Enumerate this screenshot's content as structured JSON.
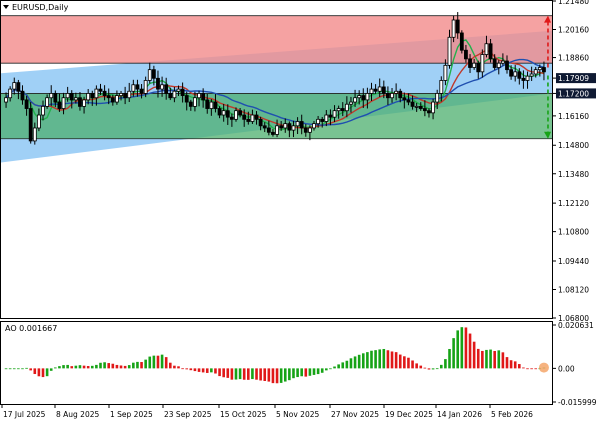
{
  "window_title": "EURUSD,Daily",
  "subwindow_title": "AO 0.001667",
  "colors": {
    "bull_candle": "#000000",
    "bear_candle": "#000000",
    "red_zone": "#f28b8b",
    "blue_channel": "#8fc8f5",
    "green_zone": "#4caf6e",
    "ma_fast": "#22b14c",
    "ma_mid": "#c0392b",
    "ma_slow": "#1f4fb0",
    "ao_up": "#16a316",
    "ao_down": "#e01818",
    "box_tag_fill": "#0f1a33",
    "box_tag_text": "#ffffff"
  },
  "chart_data": [
    {
      "type": "candlestick",
      "title": "EURUSD,Daily",
      "ylim": [
        1.068,
        1.2148
      ],
      "y_ticks": [
        "1.21480",
        "1.20160",
        "1.18860",
        "1.17909",
        "1.17200",
        "1.16160",
        "1.14800",
        "1.13480",
        "1.12120",
        "1.10800",
        "1.09440",
        "1.08120",
        "1.06800"
      ],
      "x_ticks": [
        "17 Jul 2025",
        "8 Aug 2025",
        "1 Sep 2025",
        "23 Sep 2025",
        "15 Oct 2025",
        "5 Nov 2025",
        "27 Nov 2025",
        "19 Dec 2025",
        "14 Jan 2026",
        "5 Feb 2026"
      ],
      "highlighted_levels": [
        1.208,
        1.186,
        1.17909,
        1.172,
        1.151
      ],
      "price_path": [
        1.17,
        1.174,
        1.177,
        1.173,
        1.169,
        1.165,
        1.15,
        1.156,
        1.162,
        1.166,
        1.17,
        1.172,
        1.168,
        1.165,
        1.17,
        1.172,
        1.169,
        1.17,
        1.166,
        1.169,
        1.172,
        1.17,
        1.174,
        1.173,
        1.171,
        1.17,
        1.168,
        1.171,
        1.172,
        1.17,
        1.173,
        1.176,
        1.174,
        1.172,
        1.178,
        1.183,
        1.179,
        1.174,
        1.176,
        1.172,
        1.17,
        1.173,
        1.174,
        1.171,
        1.168,
        1.166,
        1.17,
        1.172,
        1.169,
        1.165,
        1.168,
        1.165,
        1.162,
        1.164,
        1.161,
        1.16,
        1.164,
        1.162,
        1.16,
        1.159,
        1.162,
        1.16,
        1.157,
        1.156,
        1.154,
        1.153,
        1.157,
        1.156,
        1.158,
        1.155,
        1.157,
        1.159,
        1.156,
        1.154,
        1.156,
        1.158,
        1.16,
        1.159,
        1.162,
        1.161,
        1.164,
        1.165,
        1.164,
        1.167,
        1.168,
        1.17,
        1.171,
        1.169,
        1.172,
        1.174,
        1.173,
        1.175,
        1.172,
        1.17,
        1.172,
        1.173,
        1.17,
        1.169,
        1.168,
        1.166,
        1.166,
        1.165,
        1.164,
        1.163,
        1.168,
        1.172,
        1.178,
        1.185,
        1.198,
        1.206,
        1.2,
        1.192,
        1.188,
        1.184,
        1.186,
        1.182,
        1.19,
        1.195,
        1.188,
        1.184,
        1.186,
        1.187,
        1.183,
        1.18,
        1.182,
        1.179,
        1.178,
        1.18,
        1.181,
        1.183,
        1.184,
        1.182
      ],
      "moving_averages": [
        {
          "name": "MA fast",
          "period": 0
        },
        {
          "name": "MA mid",
          "period": 0
        },
        {
          "name": "MA slow",
          "period": 0
        }
      ],
      "forecast": {
        "up_target": 1.208,
        "down_target": 1.151,
        "current_level": 1.184
      }
    },
    {
      "type": "bar",
      "title": "AO 0.001667",
      "ylim": [
        -0.015999,
        0.020631
      ],
      "y_ticks": [
        "0.020631",
        "0.00",
        "-0.015999"
      ],
      "current_value": 0.001667
    }
  ]
}
